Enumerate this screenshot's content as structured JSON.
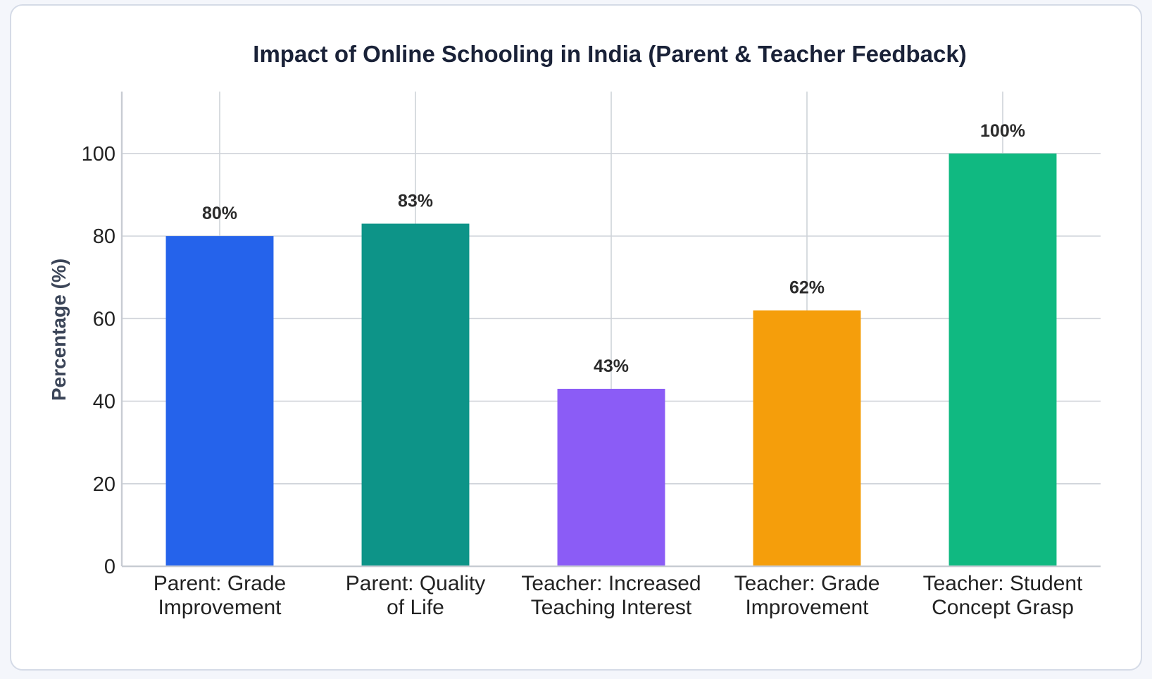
{
  "chart_data": {
    "type": "bar",
    "title": "Impact of Online Schooling in India (Parent & Teacher Feedback)",
    "xlabel": "",
    "ylabel": "Percentage (%)",
    "ylim": [
      0,
      115
    ],
    "yticks": [
      0,
      20,
      40,
      60,
      80,
      100
    ],
    "grid": true,
    "categories": [
      [
        "Parent: Grade",
        "Improvement"
      ],
      [
        "Parent: Quality",
        "of Life"
      ],
      [
        "Teacher: Increased",
        "Teaching Interest"
      ],
      [
        "Teacher: Grade",
        "Improvement"
      ],
      [
        "Teacher: Student",
        "Concept Grasp"
      ]
    ],
    "values": [
      80,
      83,
      43,
      62,
      100
    ],
    "data_labels": [
      "80%",
      "83%",
      "43%",
      "62%",
      "100%"
    ],
    "colors": [
      "#2563eb",
      "#0d9488",
      "#8b5cf6",
      "#f59e0b",
      "#10b981"
    ]
  }
}
